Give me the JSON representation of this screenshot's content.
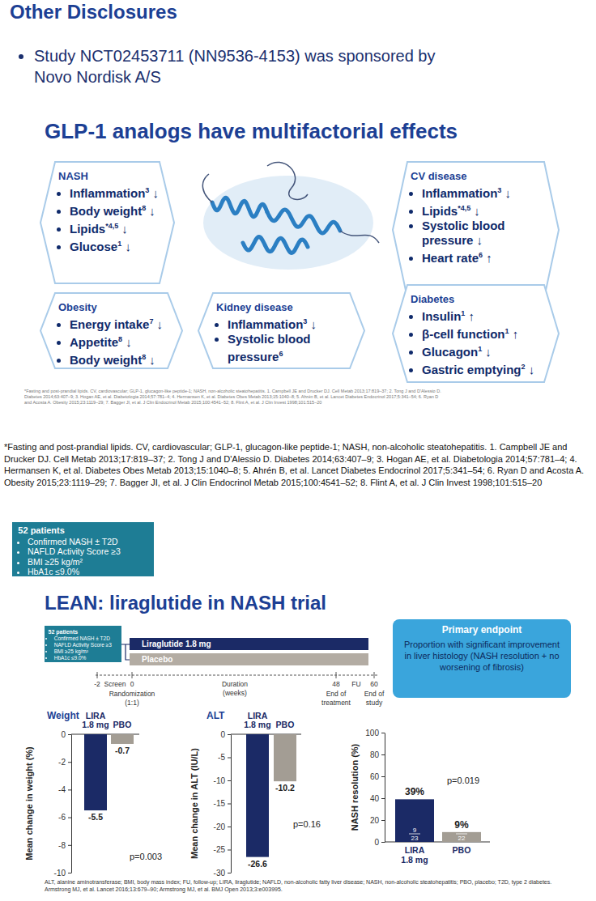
{
  "header": {
    "title": "Other Disclosures",
    "bullets": [
      "Study NCT02453711 (NN9536-4153) was sponsored by Novo Nordisk A/S"
    ]
  },
  "diagram": {
    "title": "GLP-1 analogs have multifactorial effects",
    "boxes": [
      {
        "title": "NASH",
        "items": [
          {
            "text": "Inflammation",
            "ref": "3",
            "effect": "↓"
          },
          {
            "text": "Body weight",
            "ref": "8",
            "effect": "↓"
          },
          {
            "text": "Lipids",
            "ref": "*4,5",
            "effect": "↓"
          },
          {
            "text": "Glucose",
            "ref": "1",
            "effect": "↓"
          }
        ]
      },
      {
        "title": "CV disease",
        "items": [
          {
            "text": "Inflammation",
            "ref": "3",
            "effect": "↓"
          },
          {
            "text": "Lipids",
            "ref": "*4,5",
            "effect": "↓"
          },
          {
            "text": "Systolic blood pressure",
            "effect": "↓"
          },
          {
            "text": "Heart rate",
            "ref": "6",
            "effect": "↑"
          }
        ]
      },
      {
        "title": "Obesity",
        "items": [
          {
            "text": "Energy intake",
            "ref": "7",
            "effect": "↓"
          },
          {
            "text": "Appetite",
            "ref": "8",
            "effect": "↓"
          },
          {
            "text": "Body weight",
            "ref": "8",
            "effect": "↓"
          }
        ]
      },
      {
        "title": "Kidney disease",
        "items": [
          {
            "text": "Inflammation",
            "ref": "3",
            "effect": "↓"
          },
          {
            "text": "Systolic blood pressure",
            "ref": "6"
          }
        ]
      },
      {
        "title": "Diabetes",
        "items": [
          {
            "text": "Insulin",
            "ref": "1",
            "effect": "↑"
          },
          {
            "text": "β-cell function",
            "ref": "1",
            "effect": "↑"
          },
          {
            "text": "Glucagon",
            "ref": "1",
            "effect": "↓"
          },
          {
            "text": "Gastric emptying",
            "ref": "2",
            "effect": "↓"
          }
        ]
      }
    ]
  },
  "footnote": {
    "note": "*Fasting and post-prandial lipids.",
    "abbreviations": "CV, cardiovascular; GLP-1, glucagon-like peptide-1; NASH, non-alcoholic steatohepatitis.",
    "references": [
      "1. Campbell JE and Drucker DJ. Cell Metab 2013;17:819–37;",
      "2. Tong J and D'Alessio D. Diabetes 2014;63:407–9;",
      "3. Hogan AE, et al. Diabetologia 2014;57:781–4;",
      "4. Hermansen K, et al. Diabetes Obes Metab 2013;15:1040–8;",
      "5. Ahrén B, et al. Lancet Diabetes Endocrinol 2017;5:341–54;",
      "6. Ryan D and Acosta A. Obesity 2015;23:1119–29;",
      "7. Bagger JI, et al. J Clin Endocrinol Metab 2015;100:4541–52;",
      "8. Flint A, et al. J Clin Invest 1998;101:515–20"
    ]
  },
  "patients": {
    "title": "52 patients",
    "items": [
      "Confirmed NASH ± T2D",
      "NAFLD Activity Score ≥3",
      "BMI ≥25 kg/m²",
      "HbA1c ≤9.0%"
    ]
  },
  "trial": {
    "title": "LEAN: liraglutide in NASH trial",
    "arms": [
      "Liraglutide 1.8 mg",
      "Placebo"
    ],
    "timeline": [
      -2,
      0,
      48,
      60
    ],
    "captions": [
      {
        "lines": [
          "Screen"
        ]
      },
      {
        "lines": [
          "Randomization",
          "(1:1)"
        ]
      },
      {
        "lines": [
          "Duration",
          "(weeks)"
        ]
      },
      {
        "lines": [
          "End of",
          "treatment"
        ]
      },
      {
        "lines": [
          "FU"
        ]
      },
      {
        "lines": [
          "End of",
          "study"
        ]
      }
    ]
  },
  "chart_data": [
    {
      "type": "bar",
      "title": "Weight",
      "ylabel": "Mean change in weight (%)",
      "categories": [
        "LIRA 1.8 mg",
        "PBO"
      ],
      "values": [
        -5.5,
        -0.7
      ],
      "colors": [
        "#1b2a66",
        "#a39d94"
      ],
      "ylim": [
        -10,
        0
      ],
      "yticks": [
        -10,
        -8,
        -6,
        -4,
        -2,
        0
      ],
      "data_labels": true,
      "annotations": [
        "p=0.003"
      ]
    },
    {
      "type": "bar",
      "title": "ALT",
      "ylabel": "Mean change in ALT (IU/L)",
      "categories": [
        "LIRA 1.8 mg",
        "PBO"
      ],
      "values": [
        -26.6,
        -10.2
      ],
      "colors": [
        "#1b2a66",
        "#a39d94"
      ],
      "ylim": [
        -30,
        0
      ],
      "yticks": [
        -30,
        -25,
        -20,
        -15,
        -10,
        -5,
        0
      ],
      "data_labels": true,
      "annotations": [
        "p=0.16"
      ]
    },
    {
      "type": "bar",
      "title": "Primary endpoint",
      "subtitle": "Proportion with significant improvement in liver histology (NASH resolution + no worsening of fibrosis)",
      "ylabel": "NASH resolution (%)",
      "categories": [
        "LIRA 1.8 mg",
        "PBO"
      ],
      "values": [
        39,
        9
      ],
      "value_labels": [
        "39%",
        "9%"
      ],
      "numerators": [
        9,
        2
      ],
      "denominators": [
        23,
        22
      ],
      "colors": [
        "#1b2a66",
        "#a39d94"
      ],
      "ylim": [
        0,
        100
      ],
      "yticks": [
        0,
        20,
        40,
        60,
        80,
        100
      ],
      "data_labels": true,
      "annotations": [
        "p=0.019"
      ]
    }
  ],
  "footer": {
    "abbreviations": "ALT, alanine aminotransferase; BMI, body mass index; FU, follow-up; LIRA, liraglutide; NAFLD, non-alcoholic fatty liver disease; NASH, non-alcoholic steatohepatitis; PBO, placebo; T2D, type 2 diabetes.",
    "references": "Armstrong MJ, et al. Lancet 2016;13:679–90; Armstrong MJ, et al. BMJ Open 2013;3:e003995."
  }
}
